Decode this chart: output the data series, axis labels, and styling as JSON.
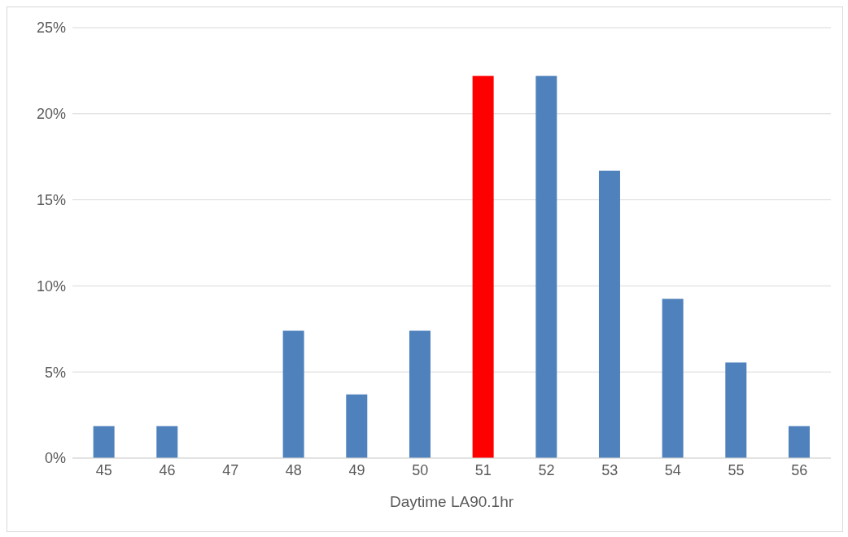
{
  "chart_data": {
    "type": "bar",
    "xlabel": "Daytime LA90.1hr",
    "categories": [
      "45",
      "46",
      "47",
      "48",
      "49",
      "50",
      "51",
      "52",
      "53",
      "54",
      "55",
      "56"
    ],
    "values": [
      1.85,
      1.85,
      0,
      7.4,
      3.7,
      7.4,
      22.2,
      22.2,
      16.7,
      9.25,
      5.55,
      1.85
    ],
    "colors": [
      "#4f81bd",
      "#4f81bd",
      "#4f81bd",
      "#4f81bd",
      "#4f81bd",
      "#4f81bd",
      "#ff0000",
      "#4f81bd",
      "#4f81bd",
      "#4f81bd",
      "#4f81bd",
      "#4f81bd"
    ],
    "ylim": [
      0,
      25
    ],
    "yticks": [
      {
        "value": 0,
        "label": "0%"
      },
      {
        "value": 5,
        "label": "5%"
      },
      {
        "value": 10,
        "label": "10%"
      },
      {
        "value": 15,
        "label": "15%"
      },
      {
        "value": 20,
        "label": "20%"
      },
      {
        "value": 25,
        "label": "25%"
      }
    ],
    "grid": "y"
  }
}
